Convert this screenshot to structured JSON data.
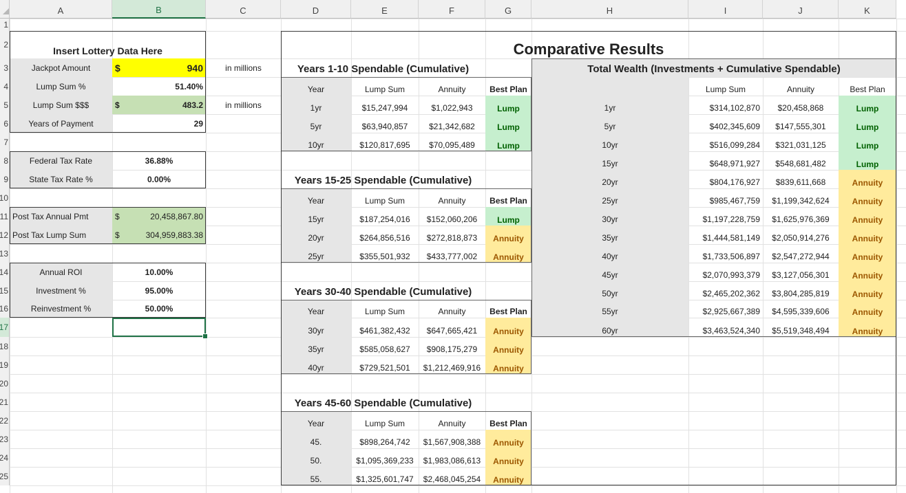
{
  "columns": [
    "A",
    "B",
    "C",
    "D",
    "E",
    "F",
    "G",
    "H",
    "I",
    "J",
    "K"
  ],
  "rows": [
    "1",
    "2",
    "3",
    "4",
    "5",
    "6",
    "7",
    "8",
    "9",
    "10",
    "11",
    "12",
    "13",
    "14",
    "15",
    "16",
    "17",
    "18",
    "19",
    "20",
    "21",
    "22",
    "23",
    "24",
    "25"
  ],
  "selected_cell": "B17",
  "colors": {
    "yellow_input": "#ffff00",
    "green_fill": "#c6e0b4",
    "gray_fill": "#e6e6e6",
    "lump_fill": "#c6efce",
    "lump_text": "#006100",
    "annuity_fill": "#ffeb9c",
    "annuity_text": "#9c5700",
    "selection": "#217346"
  },
  "inputs": {
    "title": "Insert Lottery Data Here",
    "jackpot_label": "Jackpot Amount",
    "jackpot_currency": "$",
    "jackpot_value": "940",
    "jackpot_unit": "in millions",
    "lump_pct_label": "Lump Sum %",
    "lump_pct_value": "51.40%",
    "lump_sss_label": "Lump Sum $$$",
    "lump_sss_currency": "$",
    "lump_sss_value": "483.2",
    "lump_sss_unit": "in millions",
    "years_label": "Years of Payment",
    "years_value": "29",
    "fed_tax_label": "Federal Tax Rate",
    "fed_tax_value": "36.88%",
    "state_tax_label": "State Tax Rate %",
    "state_tax_value": "0.00%",
    "post_tax_annual_label": "Post Tax Annual Pmt",
    "post_tax_annual_currency": "$",
    "post_tax_annual_value": "20,458,867.80",
    "post_tax_lump_label": "Post Tax Lump Sum",
    "post_tax_lump_currency": "$",
    "post_tax_lump_value": "304,959,883.38",
    "roi_label": "Annual ROI",
    "roi_value": "10.00%",
    "investment_label": "Investment %",
    "investment_value": "95.00%",
    "reinvestment_label": "Reinvestment %",
    "reinvestment_value": "50.00%"
  },
  "results": {
    "title": "Comparative Results",
    "col_year": "Year",
    "col_lump": "Lump Sum",
    "col_annuity": "Annuity",
    "col_best": "Best Plan",
    "lump_label": "Lump",
    "annuity_label": "Annuity",
    "block1_title": "Years 1-10 Spendable (Cumulative)",
    "block1_rows": [
      {
        "year": "1yr",
        "lump": "$15,247,994",
        "annuity": "$1,022,943",
        "best": "Lump"
      },
      {
        "year": "5yr",
        "lump": "$63,940,857",
        "annuity": "$21,342,682",
        "best": "Lump"
      },
      {
        "year": "10yr",
        "lump": "$120,817,695",
        "annuity": "$70,095,489",
        "best": "Lump"
      }
    ],
    "block2_title": "Years 15-25 Spendable (Cumulative)",
    "block2_rows": [
      {
        "year": "15yr",
        "lump": "$187,254,016",
        "annuity": "$152,060,206",
        "best": "Lump"
      },
      {
        "year": "20yr",
        "lump": "$264,856,516",
        "annuity": "$272,818,873",
        "best": "Annuity"
      },
      {
        "year": "25yr",
        "lump": "$355,501,932",
        "annuity": "$433,777,002",
        "best": "Annuity"
      }
    ],
    "block3_title": "Years 30-40 Spendable (Cumulative)",
    "block3_rows": [
      {
        "year": "30yr",
        "lump": "$461,382,432",
        "annuity": "$647,665,421",
        "best": "Annuity"
      },
      {
        "year": "35yr",
        "lump": "$585,058,627",
        "annuity": "$908,175,279",
        "best": "Annuity"
      },
      {
        "year": "40yr",
        "lump": "$729,521,501",
        "annuity": "$1,212,469,916",
        "best": "Annuity"
      }
    ],
    "block4_title": "Years 45-60 Spendable (Cumulative)",
    "block4_rows": [
      {
        "year": "45.",
        "lump": "$898,264,742",
        "annuity": "$1,567,908,388",
        "best": "Annuity"
      },
      {
        "year": "50.",
        "lump": "$1,095,369,233",
        "annuity": "$1,983,086,613",
        "best": "Annuity"
      },
      {
        "year": "55.",
        "lump": "$1,325,601,747",
        "annuity": "$2,468,045,254",
        "best": "Annuity"
      }
    ],
    "wealth_title": "Total Wealth (Investments + Cumulative Spendable)",
    "wealth_rows": [
      {
        "year": "1yr",
        "lump": "$314,102,870",
        "annuity": "$20,458,868",
        "best": "Lump"
      },
      {
        "year": "5yr",
        "lump": "$402,345,609",
        "annuity": "$147,555,301",
        "best": "Lump"
      },
      {
        "year": "10yr",
        "lump": "$516,099,284",
        "annuity": "$321,031,125",
        "best": "Lump"
      },
      {
        "year": "15yr",
        "lump": "$648,971,927",
        "annuity": "$548,681,482",
        "best": "Lump"
      },
      {
        "year": "20yr",
        "lump": "$804,176,927",
        "annuity": "$839,611,668",
        "best": "Annuity"
      },
      {
        "year": "25yr",
        "lump": "$985,467,759",
        "annuity": "$1,199,342,624",
        "best": "Annuity"
      },
      {
        "year": "30yr",
        "lump": "$1,197,228,759",
        "annuity": "$1,625,976,369",
        "best": "Annuity"
      },
      {
        "year": "35yr",
        "lump": "$1,444,581,149",
        "annuity": "$2,050,914,276",
        "best": "Annuity"
      },
      {
        "year": "40yr",
        "lump": "$1,733,506,897",
        "annuity": "$2,547,272,944",
        "best": "Annuity"
      },
      {
        "year": "45yr",
        "lump": "$2,070,993,379",
        "annuity": "$3,127,056,301",
        "best": "Annuity"
      },
      {
        "year": "50yr",
        "lump": "$2,465,202,362",
        "annuity": "$3,804,285,819",
        "best": "Annuity"
      },
      {
        "year": "55yr",
        "lump": "$2,925,667,389",
        "annuity": "$4,595,339,606",
        "best": "Annuity"
      },
      {
        "year": "60yr",
        "lump": "$3,463,524,340",
        "annuity": "$5,519,348,494",
        "best": "Annuity"
      }
    ]
  }
}
